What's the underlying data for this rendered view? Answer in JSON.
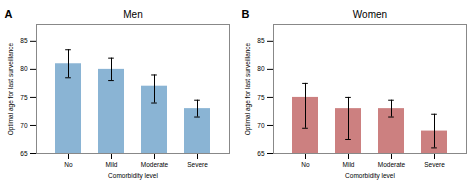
{
  "chart_data": [
    {
      "type": "bar",
      "title": "Men",
      "annotation": "A",
      "xlabel": "Comorbidity level",
      "ylabel": "Optimal age for last surveillance",
      "categories": [
        "No",
        "Mild",
        "Moderate",
        "Severe"
      ],
      "values": [
        81.0,
        80.0,
        77.0,
        73.0
      ],
      "errors_upper": [
        2.5,
        2.0,
        2.0,
        1.5
      ],
      "errors_lower": [
        2.5,
        2.0,
        3.0,
        1.5
      ],
      "color": "#8ab4d4",
      "ylim": [
        65,
        88
      ],
      "yticks": [
        65,
        70,
        75,
        80,
        85
      ]
    },
    {
      "type": "bar",
      "title": "Women",
      "annotation": "B",
      "xlabel": "Comorbidity level",
      "ylabel": "Optimal age for last surveillance",
      "categories": [
        "No",
        "Mild",
        "Moderate",
        "Severe"
      ],
      "values": [
        75.0,
        73.0,
        73.0,
        69.0
      ],
      "errors_upper": [
        2.5,
        2.0,
        1.5,
        3.0
      ],
      "errors_lower": [
        5.5,
        5.5,
        1.5,
        3.0
      ],
      "color": "#cc8080",
      "ylim": [
        65,
        88
      ],
      "yticks": [
        65,
        70,
        75,
        80,
        85
      ]
    }
  ]
}
